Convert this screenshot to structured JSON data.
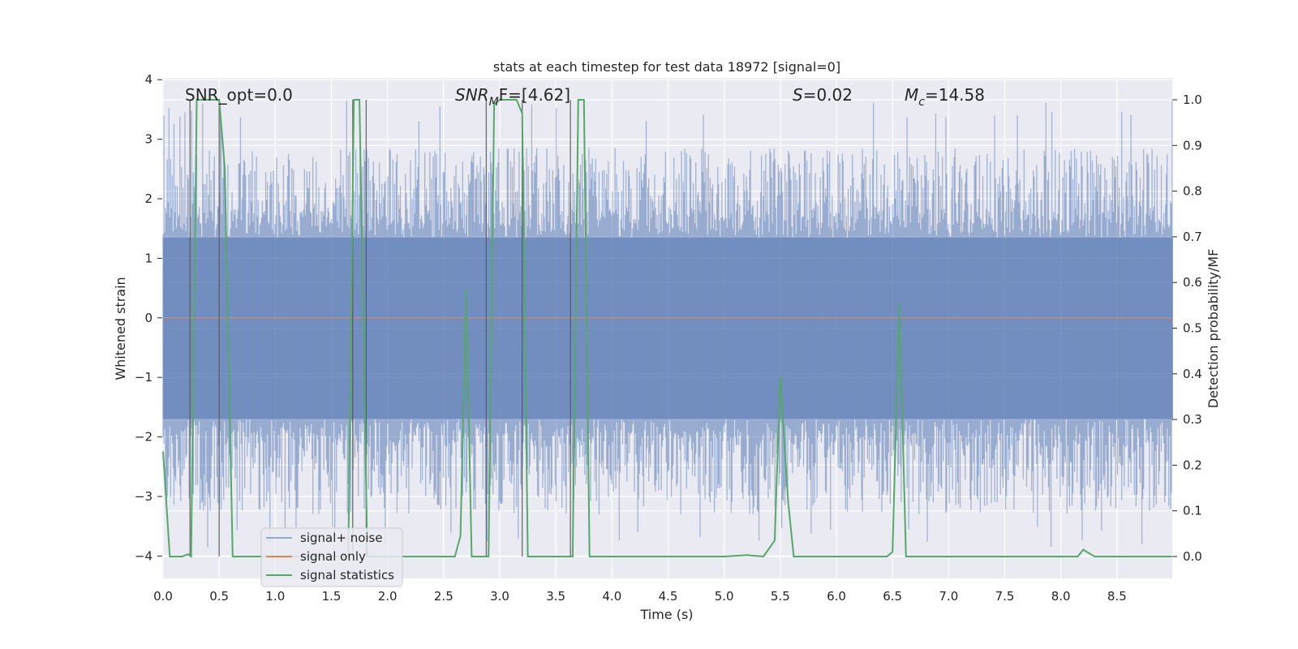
{
  "chart_data": {
    "type": "line",
    "title": "stats at each timestep for test data 18972 [signal=0]",
    "xlabel": "Time (s)",
    "ylabel": "Whitened strain",
    "y2label": "Detection probability/MF",
    "xlim": [
      0.0,
      9.0
    ],
    "ylim": [
      -4.3,
      4.0
    ],
    "y2lim": [
      -0.05,
      1.05
    ],
    "xticks": [
      0.0,
      0.5,
      1.0,
      1.5,
      2.0,
      2.5,
      3.0,
      3.5,
      4.0,
      4.5,
      5.0,
      5.5,
      6.0,
      6.5,
      7.0,
      7.5,
      8.0,
      8.5
    ],
    "yticks": [
      4,
      3,
      2,
      1,
      0,
      -1,
      -2,
      -3,
      -4
    ],
    "y2ticks": [
      1.0,
      0.9,
      0.8,
      0.7,
      0.6,
      0.5,
      0.4,
      0.3,
      0.2,
      0.1,
      0.0
    ],
    "legend": [
      "signal+ noise",
      "signal only",
      "signal statistics"
    ],
    "legend_position": "bottom-left",
    "grid": true,
    "annotations": {
      "snr_opt": "SNR_opt=0.0",
      "snr_mf_symbol": "SNR",
      "snr_mf_sub": "M",
      "snr_mf_rest": "F=[4.62]",
      "s_symbol": "S",
      "s_value": "=0.02",
      "mc_symbol": "M",
      "mc_sub": "c",
      "mc_value": "=14.58"
    },
    "colors": {
      "noise": "#4c72b0",
      "signal": "#dd8452",
      "stats": "#55a868",
      "vlines": "#555555",
      "background": "#eaeaf2",
      "grid": "#ffffff"
    },
    "series": [
      {
        "name": "signal statistics",
        "axis": "right",
        "x": [
          0.0,
          0.06,
          0.17,
          0.22,
          0.25,
          0.3,
          0.5,
          0.55,
          0.62,
          0.7,
          1.0,
          1.2,
          1.65,
          1.7,
          1.75,
          1.82,
          1.9,
          2.0,
          2.4,
          2.6,
          2.65,
          2.7,
          2.75,
          2.85,
          2.9,
          2.95,
          3.0,
          3.15,
          3.2,
          3.25,
          3.3,
          3.6,
          3.65,
          3.7,
          3.75,
          3.8,
          4.0,
          5.0,
          5.2,
          5.35,
          5.45,
          5.5,
          5.57,
          5.62,
          5.7,
          5.8,
          6.0,
          6.45,
          6.5,
          6.56,
          6.62,
          6.7,
          7.0,
          8.0,
          8.15,
          8.2,
          8.3,
          8.5,
          8.99
        ],
        "values": [
          0.23,
          0.0,
          0.0,
          0.005,
          0.0,
          1.0,
          1.0,
          0.85,
          0.0,
          0.0,
          0.0,
          0.0,
          0.0,
          1.0,
          1.0,
          0.0,
          0.0,
          0.0,
          0.0,
          0.0,
          0.045,
          0.585,
          0.0,
          0.0,
          0.0,
          0.99,
          1.0,
          1.0,
          0.97,
          0.0,
          0.0,
          0.0,
          0.0,
          1.0,
          1.0,
          0.0,
          0.0,
          0.0,
          0.003,
          0.0,
          0.035,
          0.395,
          0.12,
          0.0,
          0.0,
          0.0,
          0.0,
          0.0,
          0.01,
          0.555,
          0.0,
          0.0,
          0.0,
          0.0,
          0.0,
          0.015,
          0.0,
          0.0,
          0.0
        ]
      },
      {
        "name": "signal only",
        "axis": "left",
        "x": [
          0.0,
          9.0
        ],
        "values": [
          0.0,
          0.0
        ]
      },
      {
        "name": "signal+ noise",
        "axis": "left",
        "description_only": false,
        "envelope": [
          -1.7,
          1.35
        ],
        "peak_range": [
          -3.9,
          3.65
        ],
        "x_range": [
          0.0,
          9.0
        ],
        "sample_count": 1200
      }
    ],
    "detection_lines": [
      0.24,
      0.5,
      1.69,
      1.81,
      2.88,
      3.2,
      3.63
    ]
  }
}
